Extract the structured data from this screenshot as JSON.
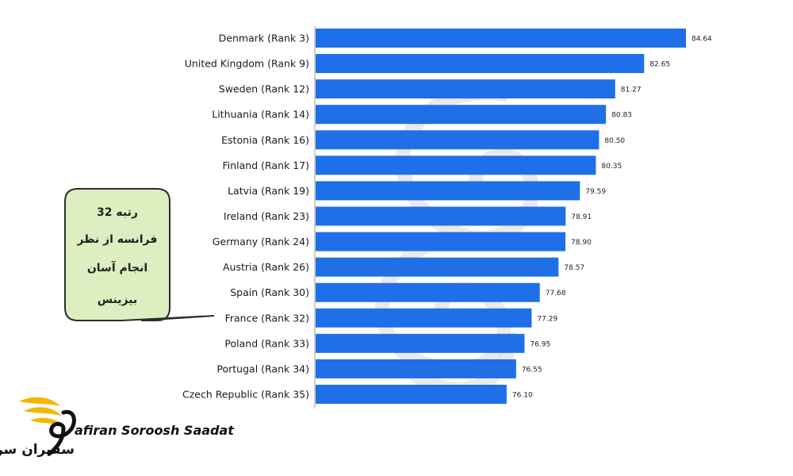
{
  "chart_data": {
    "type": "bar",
    "orientation": "horizontal",
    "categories": [
      "Denmark (Rank 3)",
      "United Kingdom (Rank 9)",
      "Sweden (Rank 12)",
      "Lithuania (Rank 14)",
      "Estonia (Rank 16)",
      "Finland (Rank 17)",
      "Latvia (Rank 19)",
      "Ireland (Rank 23)",
      "Germany (Rank 24)",
      "Austria (Rank 26)",
      "Spain (Rank 30)",
      "France (Rank 32)",
      "Poland (Rank 33)",
      "Portugal (Rank 34)",
      "Czech Republic (Rank 35)"
    ],
    "values": [
      84.64,
      82.65,
      81.27,
      80.83,
      80.5,
      80.35,
      79.59,
      78.91,
      78.9,
      78.57,
      77.68,
      77.29,
      76.95,
      76.55,
      76.1
    ],
    "value_labels": [
      "84.64",
      "82.65",
      "81.27",
      "80.83",
      "80.50",
      "80.35",
      "79.59",
      "78.91",
      "78.90",
      "78.57",
      "77.68",
      "77.29",
      "76.95",
      "76.55",
      "76.10"
    ],
    "grid": false,
    "bar_color": "#1f6fe8"
  },
  "callout": {
    "lines": [
      "رتبه 32",
      "فرانسه از نظر",
      "انجام آسان",
      "بیزینس"
    ],
    "fill": "#dcefc0",
    "stroke": "#2d2d2d",
    "points_to": "France (Rank 32)"
  },
  "logo": {
    "text_en": "afiran Soroosh Saadat",
    "text_fa": "سفیران سروش سعادت",
    "accent": "#f2b705"
  }
}
